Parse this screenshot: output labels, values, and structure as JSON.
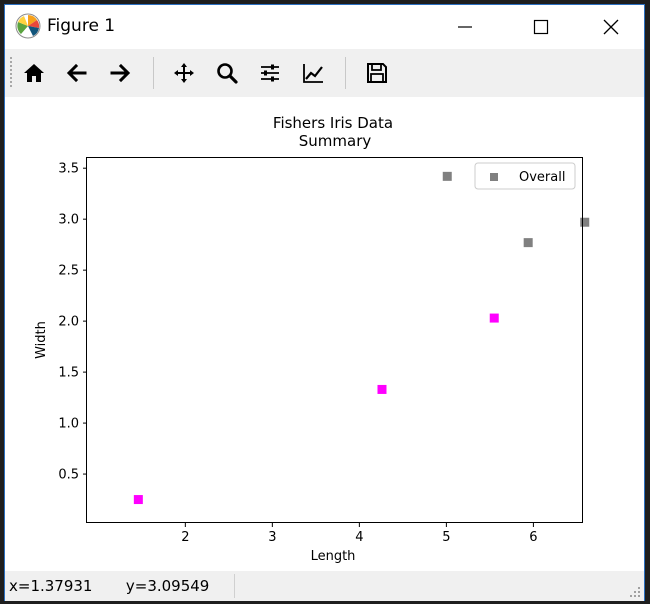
{
  "window": {
    "title": "Figure 1"
  },
  "toolbar": {
    "buttons": [
      {
        "name": "home-icon",
        "label": "Home"
      },
      {
        "name": "back-arrow-icon",
        "label": "Back"
      },
      {
        "name": "forward-arrow-icon",
        "label": "Forward"
      },
      {
        "name": "pan-icon",
        "label": "Pan"
      },
      {
        "name": "zoom-icon",
        "label": "Zoom"
      },
      {
        "name": "subplots-icon",
        "label": "Subplots"
      },
      {
        "name": "edit-axis-icon",
        "label": "Customize"
      },
      {
        "name": "save-icon",
        "label": "Save"
      }
    ]
  },
  "status": {
    "x_readout": "x=1.37931",
    "y_readout": "y=3.09549"
  },
  "chart_data": {
    "type": "scatter",
    "title": "Fishers Iris Data",
    "subtitle": "Summary",
    "xlabel": "Length",
    "ylabel": "Width",
    "xlim": [
      0.87,
      6.57
    ],
    "ylim": [
      0.02,
      3.6
    ],
    "xticks": [
      2,
      3,
      4,
      5,
      6
    ],
    "yticks": [
      0.5,
      1.0,
      1.5,
      2.0,
      2.5,
      3.0,
      3.5
    ],
    "ytick_labels": [
      "0.5",
      "1.0",
      "1.5",
      "2.0",
      "2.5",
      "3.0",
      "3.5"
    ],
    "grid": false,
    "legend": {
      "entries": [
        "Overall"
      ],
      "placement": "top-right"
    },
    "series": [
      {
        "name": "Overall",
        "color": "#808080",
        "marker": "square",
        "x": [
          5.01,
          5.94,
          6.59
        ],
        "y": [
          3.42,
          2.77,
          2.97
        ]
      },
      {
        "color": "#ff00ff",
        "marker": "square",
        "x": [
          1.46,
          4.26,
          5.55
        ],
        "y": [
          0.25,
          1.33,
          2.03
        ]
      }
    ]
  }
}
